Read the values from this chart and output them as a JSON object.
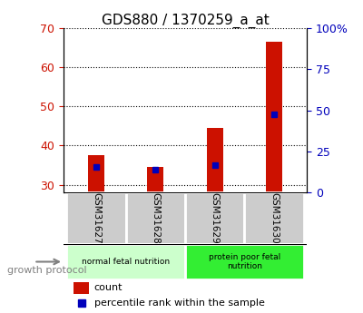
{
  "title": "GDS880 / 1370259_a_at",
  "samples": [
    "GSM31627",
    "GSM31628",
    "GSM31629",
    "GSM31630"
  ],
  "counts": [
    37.5,
    34.5,
    44.5,
    66.5
  ],
  "percentile_ranks": [
    15.5,
    14.0,
    16.5,
    47.5
  ],
  "ylim_left": [
    28,
    70
  ],
  "ylim_right": [
    0,
    100
  ],
  "yticks_left": [
    30,
    40,
    50,
    60,
    70
  ],
  "yticks_right": [
    0,
    25,
    50,
    75,
    100
  ],
  "bar_color": "#cc1100",
  "dot_color": "#0000bb",
  "bar_width": 0.28,
  "groups": [
    {
      "label": "normal fetal nutrition",
      "samples": [
        0,
        1
      ],
      "color": "#ccffcc"
    },
    {
      "label": "protein poor fetal\nnutrition",
      "samples": [
        2,
        3
      ],
      "color": "#33ee33"
    }
  ],
  "xlabel_group": "growth protocol",
  "legend_count_label": "count",
  "legend_percentile_label": "percentile rank within the sample",
  "tick_label_color_left": "#cc1100",
  "tick_label_color_right": "#0000bb",
  "sample_box_color": "#cccccc",
  "figure_width": 4.0,
  "figure_height": 3.45,
  "dpi": 100
}
